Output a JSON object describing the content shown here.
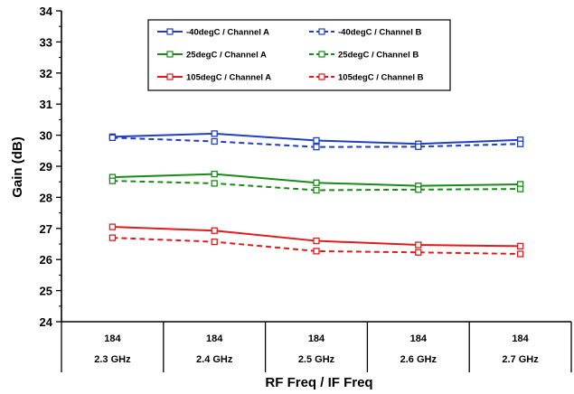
{
  "chart_data": {
    "type": "line",
    "title": "",
    "ylabel": "Gain (dB)",
    "xlabel": "RF Freq / IF Freq",
    "ylim": [
      24,
      34
    ],
    "yticks": [
      24,
      25,
      26,
      27,
      28,
      29,
      30,
      31,
      32,
      33,
      34
    ],
    "grid": false,
    "legend_position": "top",
    "categories": [
      {
        "top": "184",
        "bottom": "2.3 GHz"
      },
      {
        "top": "184",
        "bottom": "2.4 GHz"
      },
      {
        "top": "184",
        "bottom": "2.5 GHz"
      },
      {
        "top": "184",
        "bottom": "2.6 GHz"
      },
      {
        "top": "184",
        "bottom": "2.7 GHz"
      }
    ],
    "series": [
      {
        "name": "-40degC /  Channel A",
        "color": "#1f3fbf",
        "dash": false,
        "values": [
          29.95,
          30.05,
          29.83,
          29.72,
          29.85
        ]
      },
      {
        "name": "-40degC /  Channel B",
        "color": "#1f3fbf",
        "dash": true,
        "values": [
          29.92,
          29.8,
          29.62,
          29.63,
          29.72
        ]
      },
      {
        "name": "25degC /  Channel A",
        "color": "#1a8a1a",
        "dash": false,
        "values": [
          28.65,
          28.75,
          28.47,
          28.37,
          28.42
        ]
      },
      {
        "name": "25degC /  Channel B",
        "color": "#1a8a1a",
        "dash": true,
        "values": [
          28.53,
          28.45,
          28.23,
          28.25,
          28.27
        ]
      },
      {
        "name": "105degC /  Channel A",
        "color": "#e01b1b",
        "dash": false,
        "values": [
          27.05,
          26.93,
          26.6,
          26.47,
          26.43
        ]
      },
      {
        "name": "105degC /  Channel B",
        "color": "#e01b1b",
        "dash": true,
        "values": [
          26.7,
          26.57,
          26.27,
          26.23,
          26.18
        ]
      }
    ]
  }
}
